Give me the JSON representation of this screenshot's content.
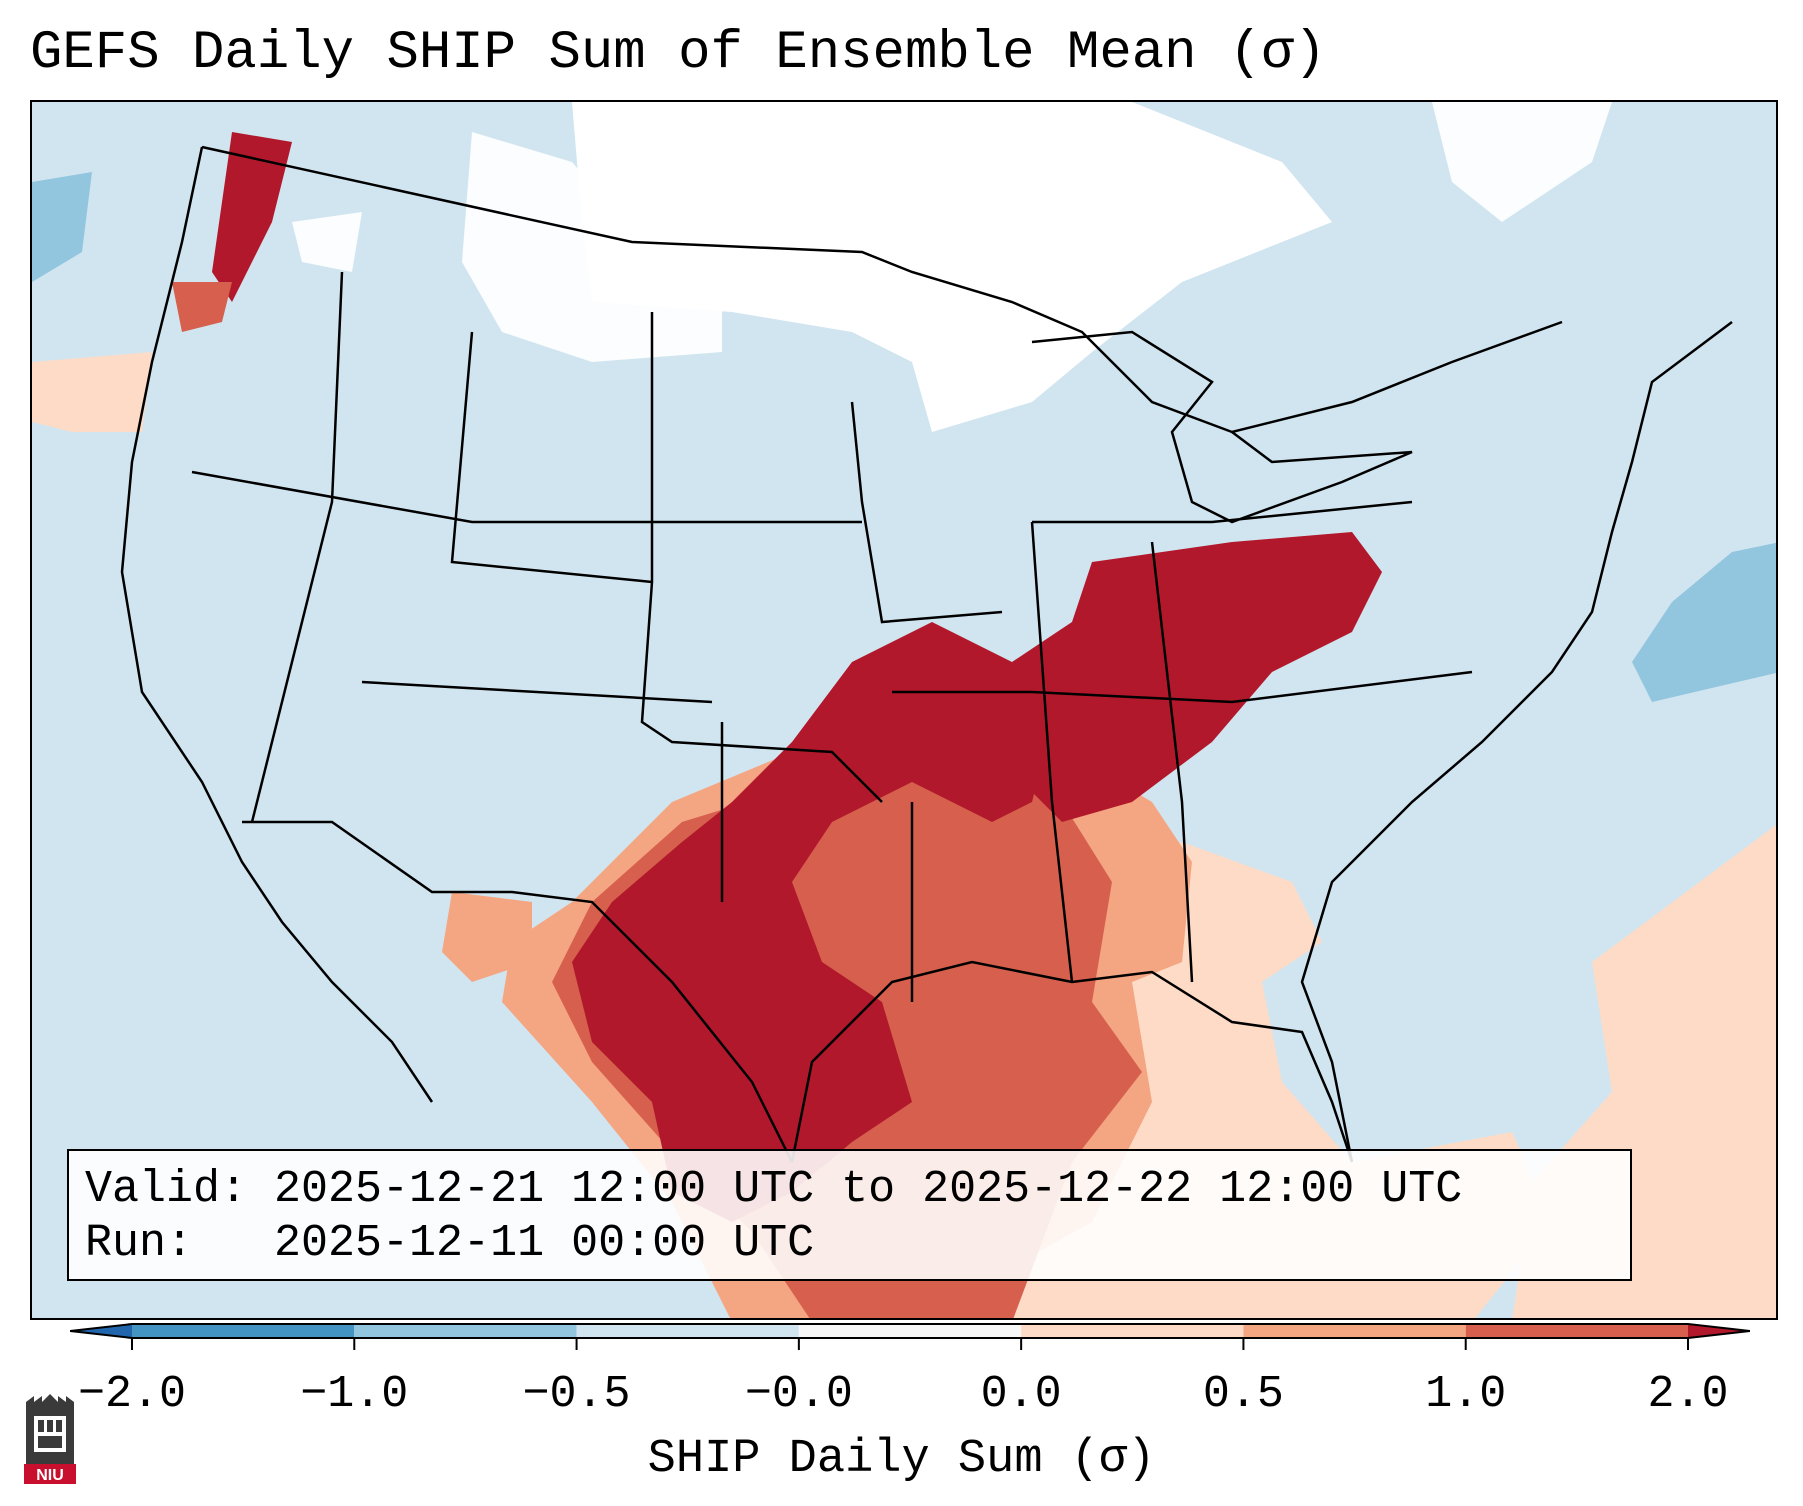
{
  "title": "GEFS Daily SHIP Sum of Ensemble Mean (σ)",
  "info": {
    "valid": "Valid: 2025-12-21 12:00 UTC to 2025-12-22 12:00 UTC",
    "run": "Run:   2025-12-11 00:00 UTC"
  },
  "colorbar": {
    "label": "SHIP Daily Sum (σ)",
    "ticks": [
      "−2.0",
      "−1.0",
      "−0.5",
      "−0.0",
      "0.0",
      "0.5",
      "1.0",
      "2.0"
    ],
    "bins": [
      {
        "color": "#2166ac"
      },
      {
        "color": "#4393c3"
      },
      {
        "color": "#92c5de"
      },
      {
        "color": "#d1e5f0"
      },
      {
        "color": "#f7f7f7"
      },
      {
        "color": "#fddbc7"
      },
      {
        "color": "#f4a582"
      },
      {
        "color": "#d6604d"
      },
      {
        "color": "#b2182b"
      }
    ]
  },
  "map_regions": [
    {
      "name": "texas-gulf-core",
      "value": 2.0
    },
    {
      "name": "ohio-valley-core",
      "value": 2.0
    },
    {
      "name": "pacific-northwest",
      "value": 2.0
    },
    {
      "name": "gulf-of-mexico",
      "value": 1.0
    },
    {
      "name": "southeast-us",
      "value": 0.5
    },
    {
      "name": "western-atlantic",
      "value": 0.5
    },
    {
      "name": "northern-plains",
      "value": 0.0
    },
    {
      "name": "conus-background",
      "value": -0.5
    },
    {
      "name": "atlantic-east",
      "value": -1.0
    }
  ],
  "logo": {
    "text": "NIU"
  }
}
